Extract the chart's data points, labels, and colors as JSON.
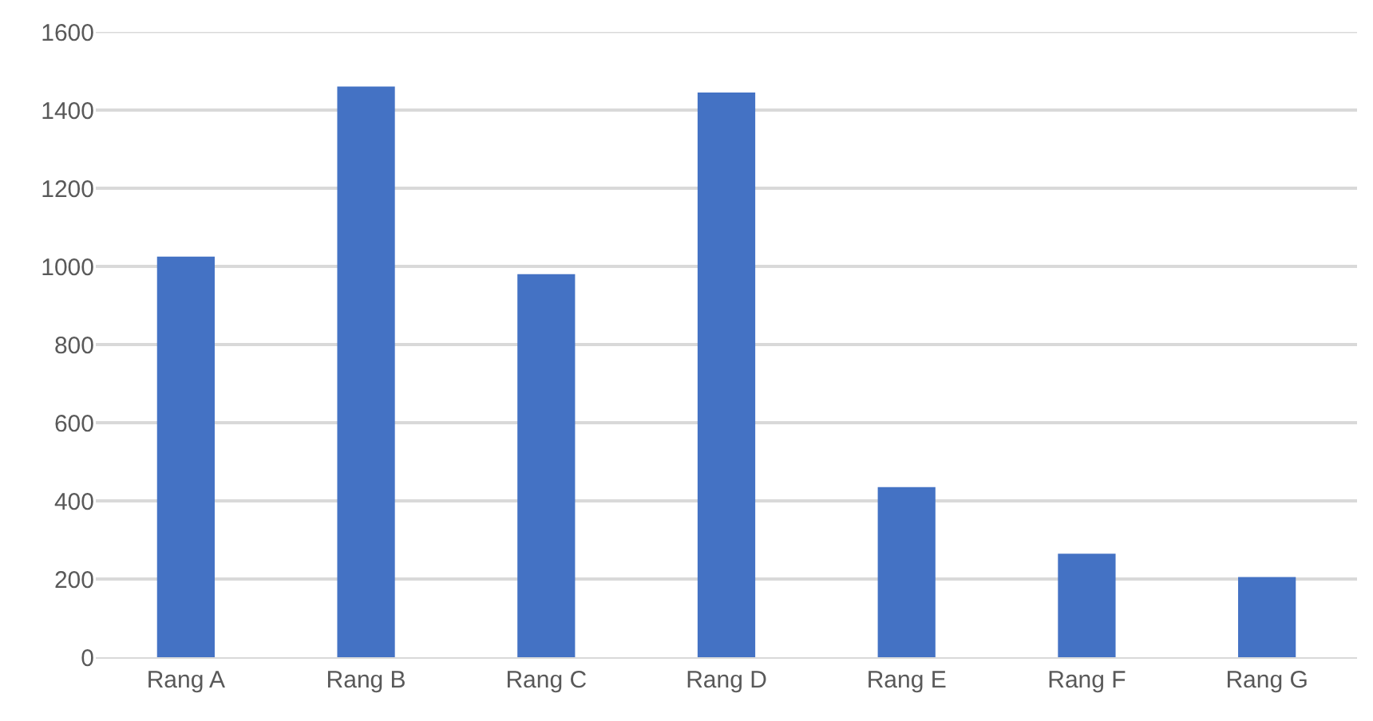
{
  "chart_data": {
    "type": "bar",
    "categories": [
      "Rang A",
      "Rang B",
      "Rang C",
      "Rang D",
      "Rang E",
      "Rang F",
      "Rang G"
    ],
    "values": [
      1025,
      1460,
      980,
      1445,
      435,
      265,
      205
    ],
    "color": "#4472c4",
    "ylim": [
      0,
      1600
    ],
    "yticks": [
      0,
      200,
      400,
      600,
      800,
      1000,
      1200,
      1400,
      1600
    ],
    "grid": "y"
  }
}
